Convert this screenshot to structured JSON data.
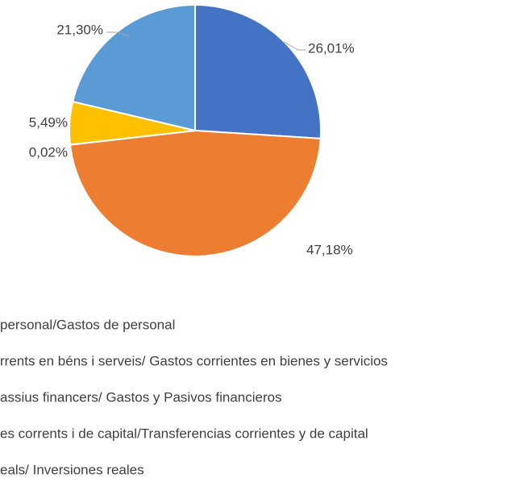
{
  "chart_data": {
    "type": "pie",
    "categories": [
      " personal/Gastos de personal",
      "rrents en béns i serveis/ Gastos corrientes en bienes y servicios",
      "assius financers/ Gastos y Pasivos financieros",
      "es corrents i de capital/Transferencias corrientes y de capital",
      "eals/ Inversiones reales"
    ],
    "values": [
      26.01,
      47.18,
      0.02,
      5.49,
      21.3
    ],
    "value_labels": [
      "26,01%",
      "47,18%",
      "0,02%",
      "5,49%",
      "21,30%"
    ],
    "colors": [
      "#4472c4",
      "#ed7d31",
      "#a5a5a5",
      "#ffc000",
      "#5b9bd5"
    ]
  }
}
